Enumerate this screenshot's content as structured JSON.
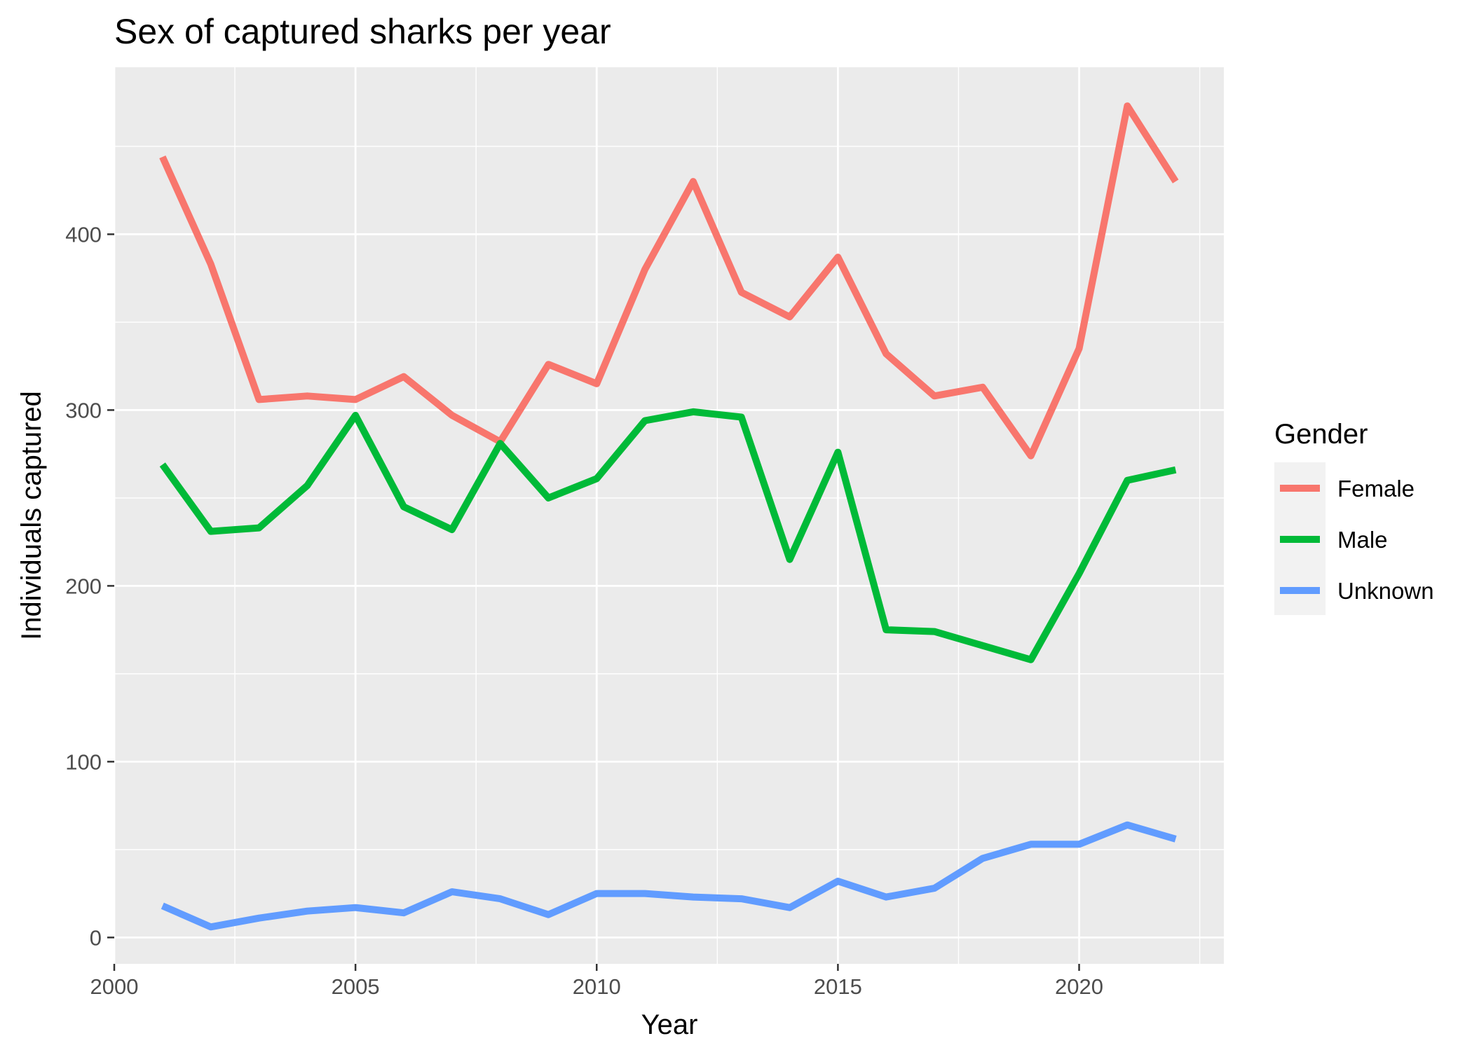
{
  "chart_data": {
    "type": "line",
    "title": "Sex of captured sharks per year",
    "xlabel": "Year",
    "ylabel": "Individuals captured",
    "xlim": [
      2000,
      2023
    ],
    "ylim": [
      -15,
      495
    ],
    "x_ticks": [
      "2000",
      "2005",
      "2010",
      "2015",
      "2020"
    ],
    "y_ticks": [
      "0",
      "100",
      "200",
      "300",
      "400"
    ],
    "grid": true,
    "legend_title": "Gender",
    "legend_position": "right",
    "x": [
      2001,
      2002,
      2003,
      2004,
      2005,
      2006,
      2007,
      2008,
      2009,
      2010,
      2011,
      2012,
      2013,
      2014,
      2015,
      2016,
      2017,
      2018,
      2019,
      2020,
      2021,
      2022
    ],
    "series": [
      {
        "name": "Female",
        "color": "#F8766D",
        "values": [
          444,
          383,
          306,
          308,
          306,
          319,
          297,
          282,
          326,
          315,
          380,
          430,
          367,
          353,
          387,
          332,
          308,
          313,
          274,
          335,
          473,
          430
        ]
      },
      {
        "name": "Male",
        "color": "#00BA38",
        "values": [
          269,
          231,
          233,
          257,
          297,
          245,
          232,
          281,
          250,
          261,
          294,
          299,
          296,
          215,
          276,
          175,
          174,
          166,
          158,
          207,
          260,
          266
        ]
      },
      {
        "name": "Unknown",
        "color": "#619CFF",
        "values": [
          18,
          6,
          11,
          15,
          17,
          14,
          26,
          22,
          13,
          25,
          25,
          23,
          22,
          17,
          32,
          23,
          28,
          45,
          53,
          53,
          64,
          56
        ]
      }
    ]
  }
}
